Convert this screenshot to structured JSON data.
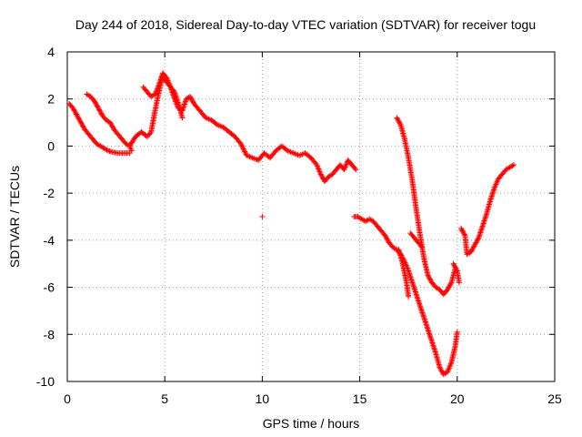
{
  "chart_data": {
    "type": "scatter",
    "title": "Day 244 of 2018, Sidereal Day-to-day VTEC variation (SDTVAR) for receiver togu",
    "xlabel": "GPS time / hours",
    "ylabel": "SDTVAR / TECUs",
    "xlim": [
      0,
      25
    ],
    "ylim": [
      -10,
      4
    ],
    "xticks": [
      0,
      5,
      10,
      15,
      20,
      25
    ],
    "yticks": [
      -10,
      -8,
      -6,
      -4,
      -2,
      0,
      2,
      4
    ],
    "grid": true,
    "marker": "+",
    "color": "#ff0000",
    "series": [
      {
        "segments": [
          [
            [
              0.1,
              1.8
            ],
            [
              0.3,
              1.6
            ],
            [
              0.5,
              1.3
            ],
            [
              0.7,
              1.0
            ],
            [
              0.9,
              0.7
            ],
            [
              1.1,
              0.5
            ],
            [
              1.3,
              0.3
            ],
            [
              1.5,
              0.1
            ],
            [
              1.7,
              0.0
            ],
            [
              1.9,
              -0.1
            ],
            [
              2.1,
              -0.2
            ],
            [
              2.3,
              -0.25
            ],
            [
              2.6,
              -0.3
            ],
            [
              2.9,
              -0.3
            ],
            [
              3.2,
              -0.3
            ]
          ],
          [
            [
              1.0,
              2.2
            ],
            [
              1.2,
              2.1
            ],
            [
              1.4,
              1.9
            ],
            [
              1.6,
              1.6
            ],
            [
              1.8,
              1.3
            ],
            [
              2.0,
              1.1
            ],
            [
              2.2,
              1.0
            ],
            [
              2.4,
              0.7
            ],
            [
              2.6,
              0.5
            ],
            [
              2.8,
              0.3
            ],
            [
              3.0,
              0.1
            ],
            [
              3.2,
              0.0
            ],
            [
              3.3,
              -0.2
            ]
          ],
          [
            [
              3.2,
              0.0
            ],
            [
              3.5,
              0.4
            ],
            [
              3.8,
              0.6
            ],
            [
              4.1,
              0.4
            ],
            [
              4.3,
              0.6
            ],
            [
              4.5,
              1.5
            ],
            [
              4.7,
              2.3
            ],
            [
              4.9,
              3.0
            ],
            [
              5.1,
              2.7
            ],
            [
              5.3,
              2.5
            ],
            [
              5.5,
              2.0
            ],
            [
              5.7,
              1.6
            ],
            [
              5.9,
              1.5
            ],
            [
              6.1,
              2.0
            ],
            [
              6.3,
              2.1
            ],
            [
              6.5,
              1.8
            ],
            [
              6.8,
              1.5
            ],
            [
              7.1,
              1.2
            ],
            [
              7.4,
              1.1
            ],
            [
              7.7,
              0.9
            ],
            [
              8.0,
              0.8
            ],
            [
              8.3,
              0.6
            ],
            [
              8.6,
              0.4
            ],
            [
              8.9,
              0.1
            ],
            [
              9.2,
              -0.4
            ],
            [
              9.5,
              -0.5
            ],
            [
              9.8,
              -0.6
            ],
            [
              10.1,
              -0.3
            ],
            [
              10.4,
              -0.5
            ],
            [
              10.7,
              -0.2
            ],
            [
              11.0,
              0.0
            ],
            [
              11.3,
              -0.2
            ],
            [
              11.6,
              -0.3
            ],
            [
              11.9,
              -0.4
            ],
            [
              12.2,
              -0.3
            ],
            [
              12.5,
              -0.5
            ],
            [
              12.8,
              -0.8
            ],
            [
              13.0,
              -1.2
            ],
            [
              13.2,
              -1.5
            ],
            [
              13.4,
              -1.3
            ],
            [
              13.6,
              -1.2
            ],
            [
              13.8,
              -1.0
            ],
            [
              14.0,
              -0.8
            ],
            [
              14.2,
              -1.0
            ],
            [
              14.4,
              -0.6
            ],
            [
              14.6,
              -0.8
            ],
            [
              14.8,
              -1.0
            ]
          ],
          [
            [
              3.9,
              2.5
            ],
            [
              4.1,
              2.3
            ],
            [
              4.3,
              2.1
            ],
            [
              4.5,
              2.2
            ],
            [
              4.7,
              2.6
            ],
            [
              4.9,
              3.1
            ],
            [
              5.1,
              2.9
            ],
            [
              5.3,
              2.5
            ],
            [
              5.5,
              2.3
            ],
            [
              5.7,
              1.8
            ],
            [
              5.9,
              1.2
            ]
          ],
          [
            [
              10.0,
              -3.0
            ]
          ],
          [
            [
              14.7,
              -3.0
            ],
            [
              14.9,
              -3.0
            ],
            [
              15.1,
              -3.1
            ],
            [
              15.3,
              -3.2
            ],
            [
              15.5,
              -3.1
            ],
            [
              15.7,
              -3.2
            ],
            [
              15.9,
              -3.4
            ],
            [
              16.1,
              -3.6
            ],
            [
              16.3,
              -3.8
            ],
            [
              16.5,
              -4.1
            ],
            [
              16.7,
              -4.3
            ],
            [
              16.9,
              -4.4
            ],
            [
              17.1,
              -4.6
            ],
            [
              17.3,
              -4.9
            ],
            [
              17.5,
              -5.3
            ],
            [
              17.7,
              -5.8
            ],
            [
              17.9,
              -6.3
            ],
            [
              18.1,
              -6.8
            ],
            [
              18.3,
              -7.3
            ],
            [
              18.5,
              -7.8
            ],
            [
              18.7,
              -8.3
            ],
            [
              18.9,
              -8.8
            ],
            [
              19.1,
              -9.4
            ],
            [
              19.3,
              -9.7
            ],
            [
              19.5,
              -9.6
            ],
            [
              19.7,
              -9.2
            ],
            [
              19.9,
              -8.5
            ],
            [
              20.0,
              -7.9
            ]
          ],
          [
            [
              16.9,
              1.2
            ],
            [
              17.1,
              0.9
            ],
            [
              17.3,
              0.3
            ],
            [
              17.5,
              -0.5
            ],
            [
              17.7,
              -1.5
            ],
            [
              17.9,
              -2.7
            ],
            [
              18.1,
              -3.8
            ],
            [
              18.3,
              -4.8
            ],
            [
              18.5,
              -5.5
            ],
            [
              18.7,
              -5.8
            ],
            [
              18.9,
              -6.0
            ],
            [
              19.1,
              -6.1
            ],
            [
              19.3,
              -6.3
            ],
            [
              19.5,
              -6.1
            ],
            [
              19.7,
              -5.8
            ],
            [
              19.9,
              -5.2
            ]
          ],
          [
            [
              17.0,
              -4.4
            ],
            [
              17.2,
              -5.0
            ],
            [
              17.4,
              -5.8
            ],
            [
              17.5,
              -6.4
            ]
          ],
          [
            [
              17.6,
              -3.7
            ],
            [
              17.8,
              -3.9
            ],
            [
              18.0,
              -4.1
            ],
            [
              18.2,
              -4.3
            ]
          ],
          [
            [
              19.8,
              -5.0
            ],
            [
              20.0,
              -5.3
            ],
            [
              20.1,
              -5.8
            ]
          ],
          [
            [
              20.2,
              -3.5
            ],
            [
              20.4,
              -3.8
            ],
            [
              20.5,
              -4.6
            ],
            [
              20.7,
              -4.5
            ],
            [
              20.9,
              -4.2
            ],
            [
              21.1,
              -3.9
            ],
            [
              21.3,
              -3.4
            ],
            [
              21.5,
              -2.9
            ],
            [
              21.7,
              -2.3
            ],
            [
              21.9,
              -1.8
            ],
            [
              22.1,
              -1.4
            ],
            [
              22.3,
              -1.2
            ],
            [
              22.5,
              -1.0
            ],
            [
              22.7,
              -0.9
            ],
            [
              22.9,
              -0.8
            ]
          ]
        ]
      }
    ]
  }
}
